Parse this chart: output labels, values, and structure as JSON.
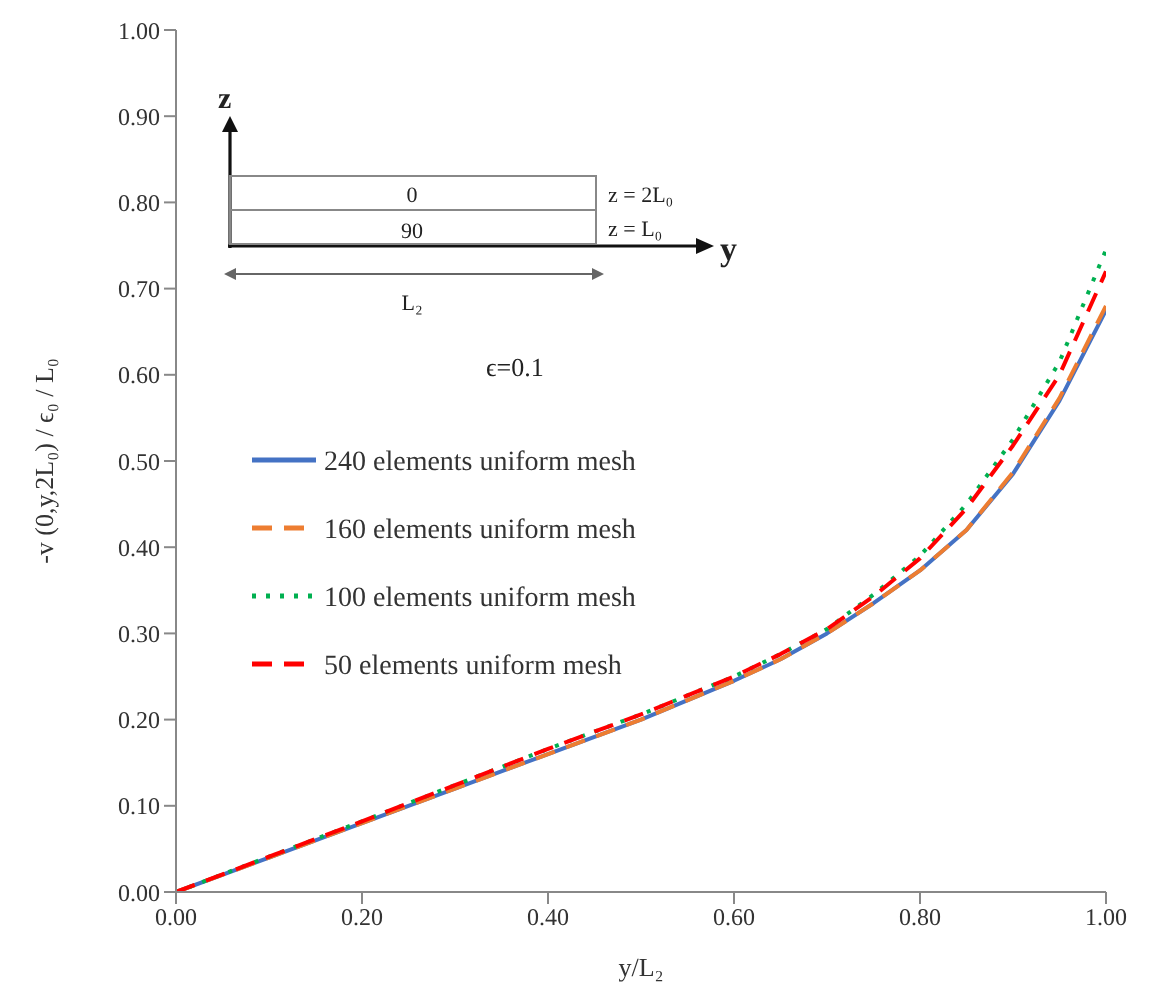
{
  "chart_data": {
    "type": "line",
    "xlabel": "y/L₂",
    "ylabel": "-v (0,y,2L₀) / ϵ₀ / L₀",
    "x": [
      0,
      0.1,
      0.2,
      0.3,
      0.4,
      0.5,
      0.6,
      0.65,
      0.7,
      0.75,
      0.8,
      0.85,
      0.9,
      0.95,
      1.0
    ],
    "series": [
      {
        "name": "240 elements uniform mesh",
        "color": "#4472c4",
        "line_style": "solid",
        "values": [
          0,
          0.04,
          0.08,
          0.12,
          0.16,
          0.2,
          0.245,
          0.27,
          0.3,
          0.335,
          0.373,
          0.42,
          0.485,
          0.57,
          0.675
        ]
      },
      {
        "name": "160 elements uniform mesh",
        "color": "#ed7d31",
        "line_style": "dashed",
        "values": [
          0,
          0.04,
          0.08,
          0.12,
          0.16,
          0.2,
          0.245,
          0.27,
          0.3,
          0.335,
          0.373,
          0.42,
          0.487,
          0.573,
          0.68
        ]
      },
      {
        "name": "100 elements uniform mesh",
        "color": "#00b050",
        "line_style": "dotted",
        "values": [
          0,
          0.041,
          0.082,
          0.124,
          0.166,
          0.206,
          0.25,
          0.276,
          0.305,
          0.345,
          0.39,
          0.45,
          0.525,
          0.615,
          0.745
        ]
      },
      {
        "name": "50 elements uniform mesh",
        "color": "#ff0000",
        "line_style": "dashed",
        "values": [
          0,
          0.041,
          0.082,
          0.124,
          0.166,
          0.206,
          0.25,
          0.276,
          0.305,
          0.343,
          0.387,
          0.445,
          0.518,
          0.6,
          0.72
        ]
      }
    ],
    "xlim": [
      0,
      1
    ],
    "xticks": [
      {
        "value": 0,
        "label": "0.00"
      },
      {
        "value": 0.2,
        "label": "0.20"
      },
      {
        "value": 0.4,
        "label": "0.40"
      },
      {
        "value": 0.6,
        "label": "0.60"
      },
      {
        "value": 0.8,
        "label": "0.80"
      },
      {
        "value": 1,
        "label": "1.00"
      }
    ],
    "ylim": [
      0,
      1
    ],
    "yticks": [
      {
        "value": 0,
        "label": "0.00"
      },
      {
        "value": 0.1,
        "label": "0.10"
      },
      {
        "value": 0.2,
        "label": "0.20"
      },
      {
        "value": 0.3,
        "label": "0.30"
      },
      {
        "value": 0.4,
        "label": "0.40"
      },
      {
        "value": 0.5,
        "label": "0.50"
      },
      {
        "value": 0.6,
        "label": "0.60"
      },
      {
        "value": 0.7,
        "label": "0.70"
      },
      {
        "value": 0.8,
        "label": "0.80"
      },
      {
        "value": 0.9,
        "label": "0.90"
      },
      {
        "value": 1,
        "label": "1.00"
      }
    ],
    "grid": false,
    "legend": "center",
    "marker": "none",
    "annotations": [
      "ϵ=0.1",
      "z",
      "y",
      "0",
      "90",
      "z = 2L₀",
      "z = L₀",
      "L₂"
    ]
  }
}
